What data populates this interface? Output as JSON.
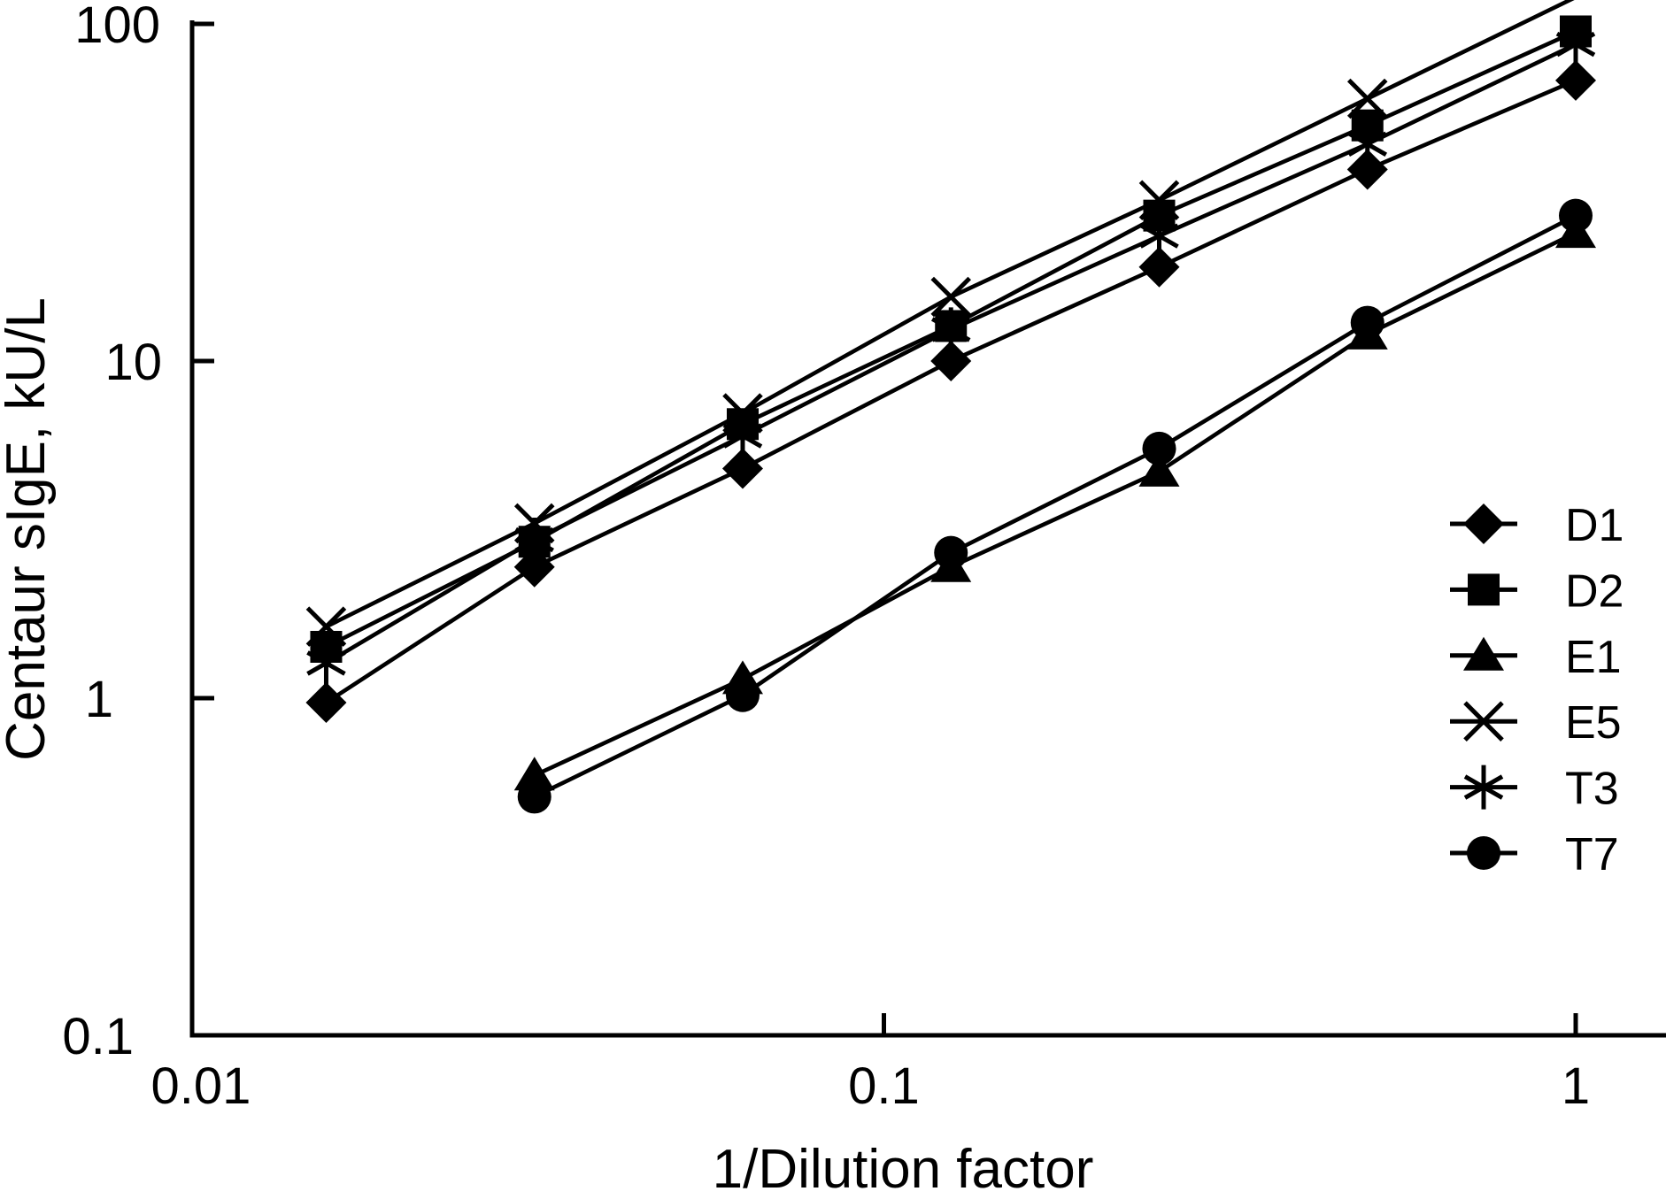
{
  "figure": {
    "background": "#ffffff",
    "ink": "#000000"
  },
  "chart_data": {
    "type": "line",
    "title": "",
    "xlabel": "1/Dilution factor",
    "ylabel": "Centaur sIgE, kU/L",
    "x_scale": "log",
    "y_scale": "log",
    "xlim": [
      0.01,
      1.35
    ],
    "ylim": [
      0.1,
      100
    ],
    "grid": false,
    "x_ticks": {
      "values": [
        0.01,
        0.1,
        1
      ],
      "labels": [
        "0.01",
        "0.1",
        "1"
      ]
    },
    "y_ticks": {
      "values": [
        0.1,
        1,
        10,
        100
      ],
      "labels": [
        "0.1",
        "1",
        "10",
        "100"
      ]
    },
    "series": [
      {
        "name": "D1",
        "marker": "diamond",
        "x": [
          0.015625,
          0.03125,
          0.0625,
          0.125,
          0.25,
          0.5,
          1
        ],
        "values": [
          0.97,
          2.45,
          4.8,
          10,
          19,
          37,
          68
        ]
      },
      {
        "name": "D2",
        "marker": "square",
        "x": [
          0.015625,
          0.03125,
          0.0625,
          0.125,
          0.25,
          0.5,
          1
        ],
        "values": [
          1.42,
          2.91,
          6.5,
          12.7,
          27,
          50,
          95
        ]
      },
      {
        "name": "E1",
        "marker": "triangle",
        "x": [
          0.03125,
          0.0625,
          0.125,
          0.25,
          0.5,
          1
        ],
        "values": [
          0.59,
          1.14,
          2.45,
          4.7,
          12,
          24
        ]
      },
      {
        "name": "E5",
        "marker": "x",
        "x": [
          0.015625,
          0.03125,
          0.0625,
          0.125,
          0.25,
          0.5,
          1
        ],
        "values": [
          1.63,
          3.3,
          7.0,
          15.5,
          30,
          60,
          120
        ]
      },
      {
        "name": "T3",
        "marker": "asterisk",
        "x": [
          0.015625,
          0.03125,
          0.0625,
          0.125,
          0.25,
          0.5,
          1
        ],
        "values": [
          1.27,
          2.95,
          6.0,
          12.4,
          23.5,
          44,
          87
        ]
      },
      {
        "name": "T7",
        "marker": "circle",
        "x": [
          0.03125,
          0.0625,
          0.125,
          0.25,
          0.5,
          1
        ],
        "values": [
          0.51,
          1.02,
          2.7,
          5.5,
          13,
          27
        ]
      }
    ],
    "legend": {
      "position": "inside-right",
      "entries": [
        "D1",
        "D2",
        "E1",
        "E5",
        "T3",
        "T7"
      ]
    }
  }
}
